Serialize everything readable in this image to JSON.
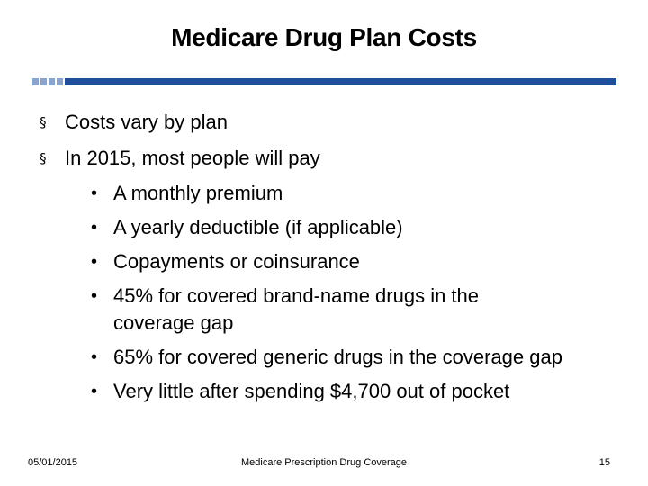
{
  "slide": {
    "title": "Medicare Drug Plan Costs",
    "accent_color": "#1f4e9c",
    "accent_light_color": "#8aa4cf"
  },
  "bullets": [
    {
      "marker": "§",
      "text": "Costs vary by plan"
    },
    {
      "marker": "§",
      "text": "In 2015, most people will pay"
    }
  ],
  "sub_bullets": [
    {
      "marker": "•",
      "text": "A monthly premium"
    },
    {
      "marker": "•",
      "text": "A yearly deductible (if applicable)"
    },
    {
      "marker": "•",
      "text": "Copayments or coinsurance"
    },
    {
      "marker": "•",
      "text": "45% for covered brand-name drugs in the coverage gap"
    },
    {
      "marker": "•",
      "text": "65% for covered generic drugs in the coverage gap"
    },
    {
      "marker": "•",
      "text": "Very little after spending $4,700 out of pocket"
    }
  ],
  "footer": {
    "date": "05/01/2015",
    "center": "Medicare Prescription Drug Coverage",
    "page": "15"
  }
}
